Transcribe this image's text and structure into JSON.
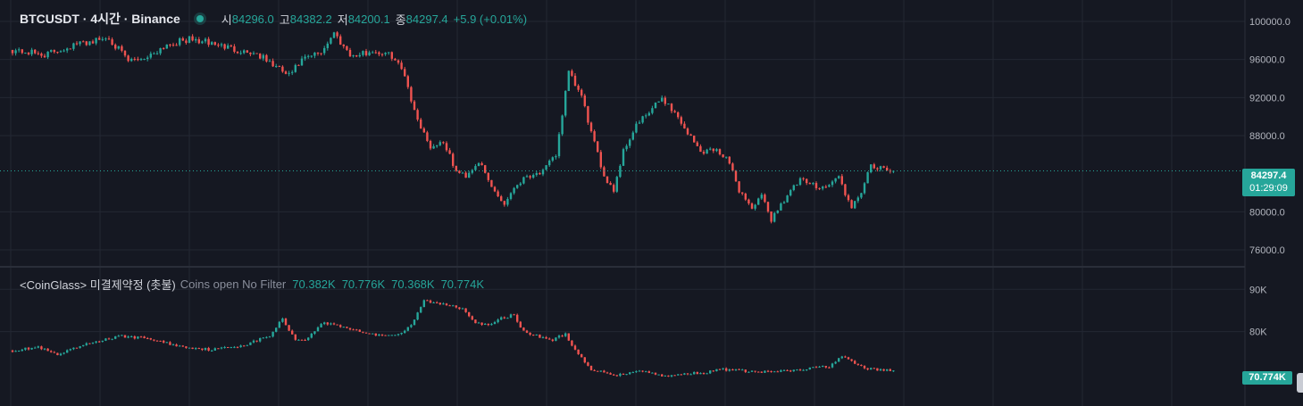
{
  "header": {
    "symbol_title": "BTCUSDT · 4시간 · Binance",
    "open_label": "시",
    "open_value": "84296.0",
    "high_label": "고",
    "high_value": "84382.2",
    "low_label": "저",
    "low_value": "84200.1",
    "close_label": "종",
    "close_value": "84297.4",
    "change": "+5.9 (+0.01%)"
  },
  "indicator": {
    "title": "<CoinGlass> 미결제약정 (촛불)",
    "subtitle": "Coins open No Filter",
    "values": [
      "70.382K",
      "70.776K",
      "70.368K",
      "70.774K"
    ]
  },
  "price_tag": {
    "price": "84297.4",
    "countdown": "01:29:09"
  },
  "oi_tag": "70.774K",
  "colors": {
    "up": "#26a69a",
    "down": "#ef5350",
    "background": "#151822",
    "grid": "#232733",
    "axis_text": "#b2b5be"
  },
  "chart_data": [
    {
      "type": "candlestick",
      "name": "BTCUSDT",
      "ylim": [
        74500,
        101500
      ],
      "y_ticks": [
        "100000.0",
        "96000.0",
        "92000.0",
        "88000.0",
        "80000.0",
        "76000.0"
      ],
      "last_close": 84297.4,
      "anchors_close": [
        [
          0,
          97000
        ],
        [
          10,
          96500
        ],
        [
          20,
          97600
        ],
        [
          30,
          98300
        ],
        [
          36,
          95800
        ],
        [
          42,
          96300
        ],
        [
          48,
          97600
        ],
        [
          55,
          98100
        ],
        [
          62,
          97700
        ],
        [
          70,
          97000
        ],
        [
          76,
          96600
        ],
        [
          82,
          95200
        ],
        [
          86,
          94300
        ],
        [
          90,
          95900
        ],
        [
          96,
          96800
        ],
        [
          100,
          98800
        ],
        [
          103,
          97400
        ],
        [
          106,
          96300
        ],
        [
          112,
          96900
        ],
        [
          118,
          96400
        ],
        [
          122,
          94500
        ],
        [
          125,
          90500
        ],
        [
          130,
          86800
        ],
        [
          134,
          87400
        ],
        [
          138,
          84200
        ],
        [
          141,
          83800
        ],
        [
          145,
          85300
        ],
        [
          149,
          82600
        ],
        [
          153,
          80800
        ],
        [
          156,
          82600
        ],
        [
          160,
          83800
        ],
        [
          165,
          84200
        ],
        [
          169,
          86000
        ],
        [
          173,
          94600
        ],
        [
          177,
          92100
        ],
        [
          181,
          87100
        ],
        [
          184,
          83800
        ],
        [
          187,
          82300
        ],
        [
          190,
          86400
        ],
        [
          194,
          89100
        ],
        [
          198,
          90400
        ],
        [
          202,
          92000
        ],
        [
          206,
          90400
        ],
        [
          210,
          88300
        ],
        [
          214,
          86300
        ],
        [
          218,
          86600
        ],
        [
          222,
          85800
        ],
        [
          226,
          82300
        ],
        [
          230,
          80400
        ],
        [
          233,
          81600
        ],
        [
          236,
          79200
        ],
        [
          239,
          80800
        ],
        [
          242,
          82200
        ],
        [
          245,
          83300
        ],
        [
          249,
          82800
        ],
        [
          253,
          82600
        ],
        [
          257,
          83700
        ],
        [
          261,
          80200
        ],
        [
          264,
          82200
        ],
        [
          267,
          84700
        ],
        [
          270,
          84500
        ],
        [
          274,
          84297.4
        ]
      ]
    },
    {
      "type": "candlestick",
      "name": "Open Interest",
      "ylim": [
        63000,
        94500
      ],
      "y_ticks": [
        "90K",
        "80K"
      ],
      "last_close": 70774,
      "anchors_close": [
        [
          0,
          75500
        ],
        [
          8,
          76300
        ],
        [
          14,
          74400
        ],
        [
          20,
          76200
        ],
        [
          26,
          77700
        ],
        [
          34,
          78900
        ],
        [
          42,
          78400
        ],
        [
          52,
          76500
        ],
        [
          62,
          75700
        ],
        [
          72,
          76800
        ],
        [
          80,
          79000
        ],
        [
          84,
          83000
        ],
        [
          88,
          78000
        ],
        [
          92,
          78400
        ],
        [
          96,
          82000
        ],
        [
          100,
          81700
        ],
        [
          106,
          80500
        ],
        [
          112,
          79300
        ],
        [
          120,
          79300
        ],
        [
          124,
          81300
        ],
        [
          128,
          87400
        ],
        [
          132,
          86600
        ],
        [
          136,
          86300
        ],
        [
          140,
          85500
        ],
        [
          144,
          82300
        ],
        [
          148,
          81300
        ],
        [
          152,
          83100
        ],
        [
          156,
          84000
        ],
        [
          159,
          79900
        ],
        [
          164,
          78800
        ],
        [
          168,
          78000
        ],
        [
          172,
          79500
        ],
        [
          175,
          75500
        ],
        [
          180,
          70800
        ],
        [
          185,
          70300
        ],
        [
          188,
          69600
        ],
        [
          195,
          70900
        ],
        [
          200,
          69900
        ],
        [
          204,
          69400
        ],
        [
          210,
          70100
        ],
        [
          216,
          70300
        ],
        [
          220,
          71100
        ],
        [
          226,
          70800
        ],
        [
          232,
          70400
        ],
        [
          240,
          70600
        ],
        [
          246,
          71000
        ],
        [
          250,
          71500
        ],
        [
          254,
          71800
        ],
        [
          258,
          74100
        ],
        [
          262,
          72400
        ],
        [
          266,
          71200
        ],
        [
          270,
          70900
        ],
        [
          274,
          70774
        ]
      ]
    }
  ]
}
